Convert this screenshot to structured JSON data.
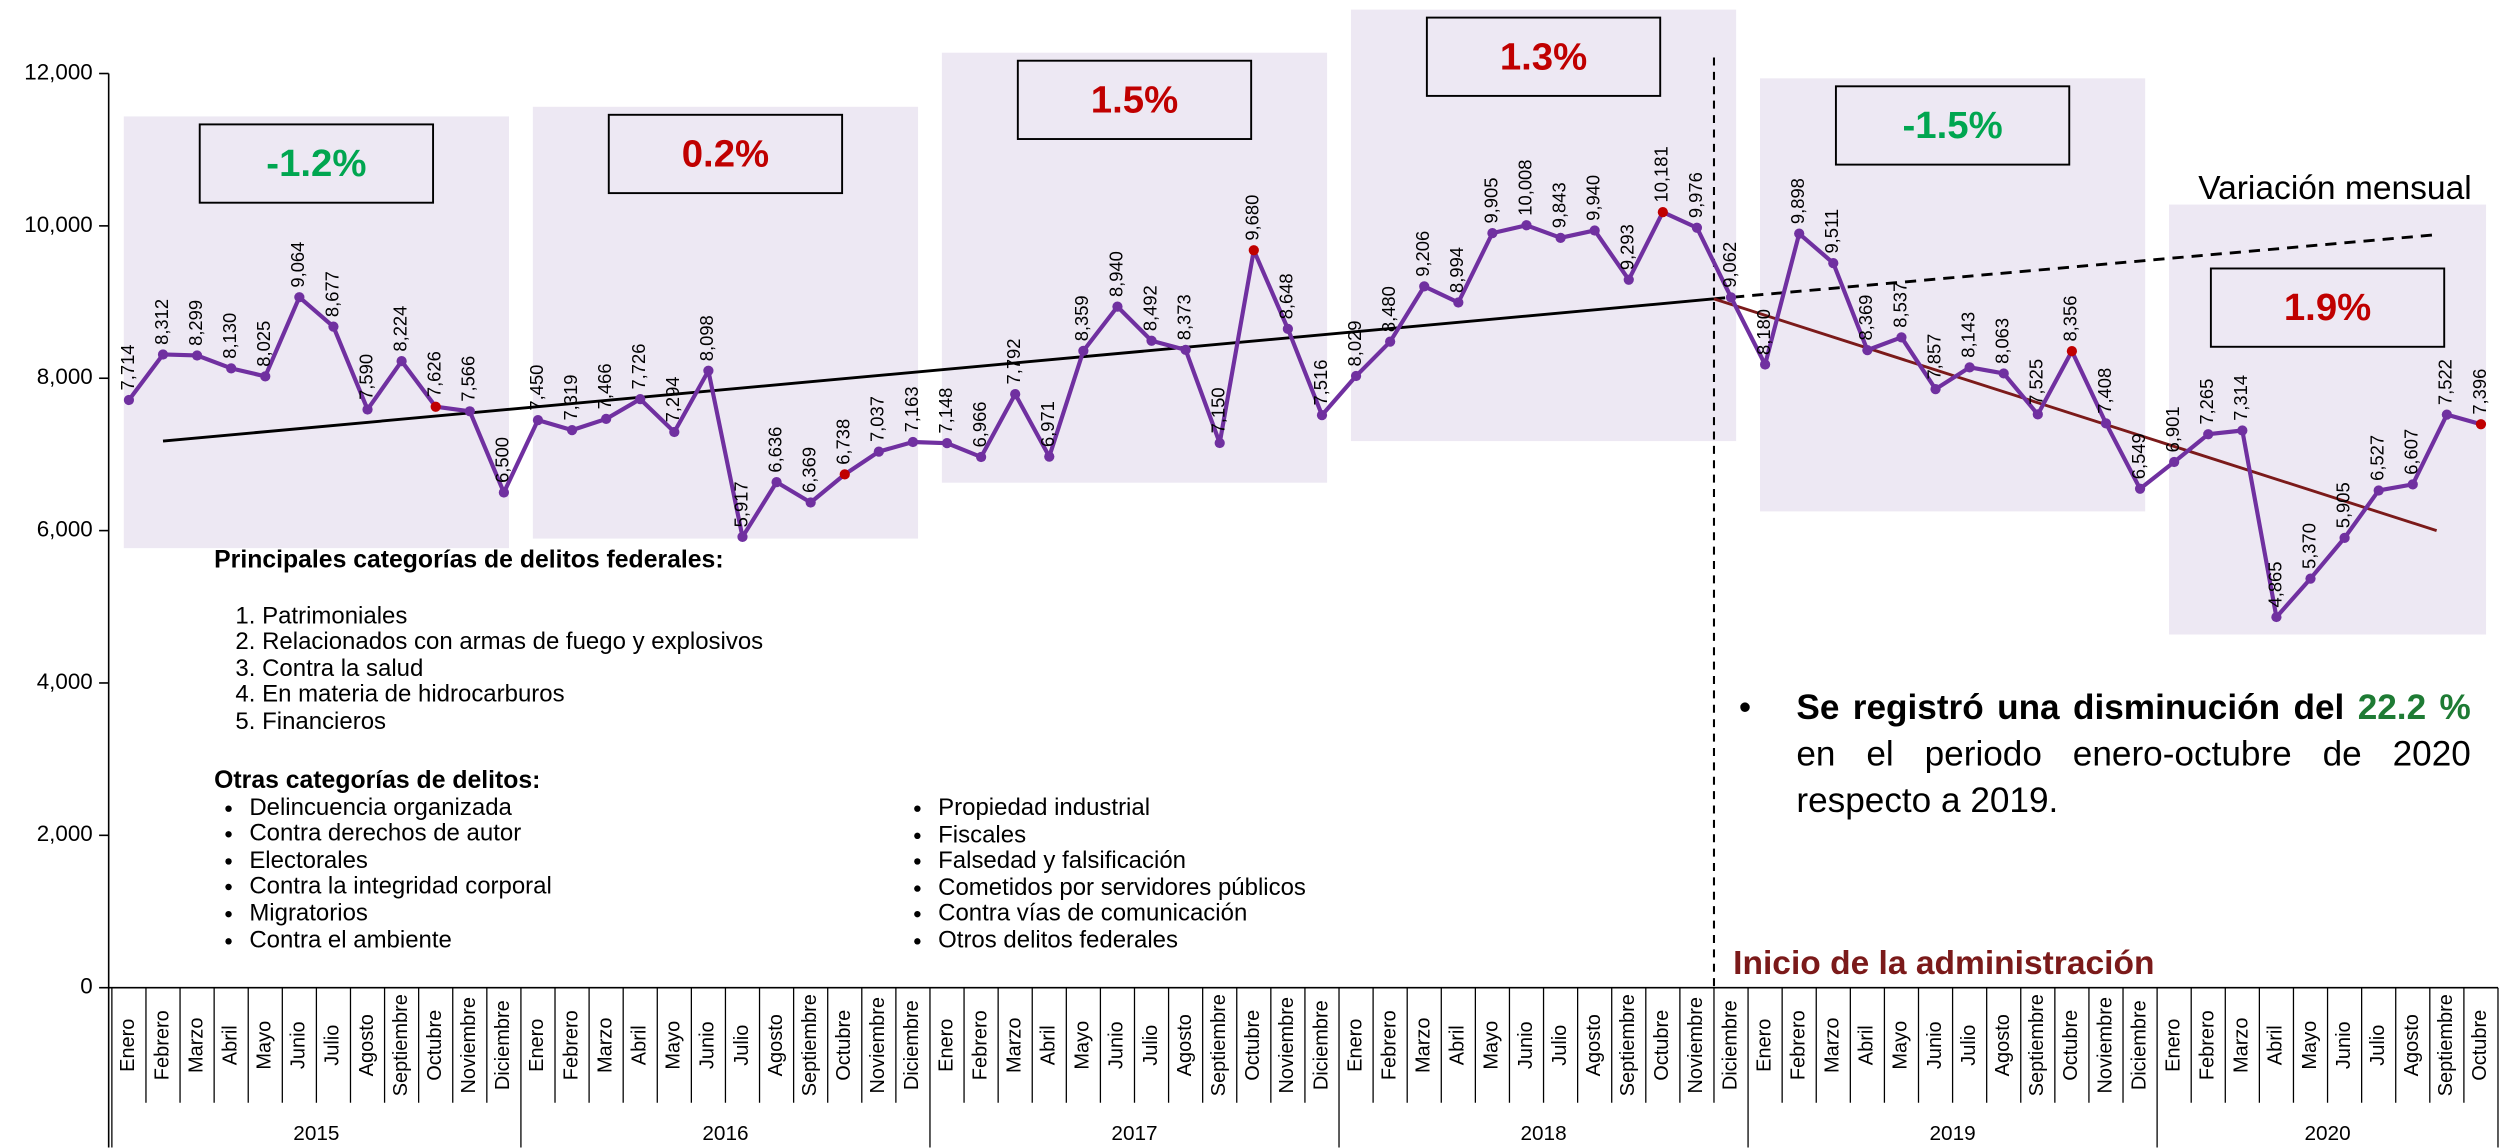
{
  "chart_data": {
    "type": "line",
    "annotation": "Variación mensual",
    "administration_label": "Inicio de la administración",
    "categories": [
      "Enero",
      "Febrero",
      "Marzo",
      "Abril",
      "Mayo",
      "Junio",
      "Julio",
      "Agosto",
      "Septiembre",
      "Octubre",
      "Noviembre",
      "Diciembre",
      "Enero",
      "Febrero",
      "Marzo",
      "Abril",
      "Mayo",
      "Junio",
      "Julio",
      "Agosto",
      "Septiembre",
      "Octubre",
      "Noviembre",
      "Diciembre",
      "Enero",
      "Febrero",
      "Marzo",
      "Abril",
      "Mayo",
      "Junio",
      "Julio",
      "Agosto",
      "Septiembre",
      "Octubre",
      "Noviembre",
      "Diciembre",
      "Enero",
      "Febrero",
      "Marzo",
      "Abril",
      "Mayo",
      "Junio",
      "Julio",
      "Agosto",
      "Septiembre",
      "Octubre",
      "Noviembre",
      "Diciembre",
      "Enero",
      "Febrero",
      "Marzo",
      "Abril",
      "Mayo",
      "Junio",
      "Julio",
      "Agosto",
      "Septiembre",
      "Octubre",
      "Noviembre",
      "Diciembre",
      "Enero",
      "Febrero",
      "Marzo",
      "Abril",
      "Mayo",
      "Junio",
      "Julio",
      "Agosto",
      "Septiembre",
      "Octubre"
    ],
    "years": [
      "2015",
      "2016",
      "2017",
      "2018",
      "2019",
      "2020"
    ],
    "values": [
      7714,
      8312,
      8299,
      8130,
      8025,
      9064,
      8677,
      7590,
      8224,
      7626,
      7566,
      6500,
      7450,
      7319,
      7466,
      7726,
      7294,
      8098,
      5917,
      6636,
      6369,
      6738,
      7037,
      7163,
      7148,
      6966,
      7792,
      6971,
      8359,
      8940,
      8492,
      8373,
      7150,
      9680,
      8648,
      7516,
      8029,
      8480,
      9206,
      8994,
      9905,
      10008,
      9843,
      9940,
      9293,
      10181,
      9976,
      9062,
      8180,
      9898,
      9511,
      8369,
      8537,
      7857,
      8143,
      8063,
      7525,
      8356,
      7408,
      6549,
      6901,
      7265,
      7314,
      4865,
      5370,
      5905,
      6527,
      6607,
      7522,
      7396
    ],
    "value_labels": [
      "7,714",
      "8,312",
      "8,299",
      "8,130",
      "8,025",
      "9,064",
      "8,677",
      "7,590",
      "8,224",
      "7,626",
      "7,566",
      "6,500",
      "7,450",
      "7,319",
      "7,466",
      "7,726",
      "7,294",
      "8,098",
      "5,917",
      "6,636",
      "6,369",
      "6,738",
      "7,037",
      "7,163",
      "7,148",
      "6,966",
      "7,792",
      "6,971",
      "8,359",
      "8,940",
      "8,492",
      "8,373",
      "7,150",
      "9,680",
      "8,648",
      "7,516",
      "8,029",
      "8,480",
      "9,206",
      "8,994",
      "9,905",
      "10,008",
      "9,843",
      "9,940",
      "9,293",
      "10,181",
      "9,976",
      "9,062",
      "8,180",
      "9,898",
      "9,511",
      "8,369",
      "8,537",
      "7,857",
      "8,143",
      "8,063",
      "7,525",
      "8,356",
      "7,408",
      "6,549",
      "6,901",
      "7,265",
      "7,314",
      "4,865",
      "5,370",
      "5,905",
      "6,527",
      "6,607",
      "7,522",
      "7,396"
    ],
    "color": "#7030a0",
    "marker_colors": [
      "#7030a0",
      "#7030a0",
      "#7030a0",
      "#7030a0",
      "#7030a0",
      "#7030a0",
      "#7030a0",
      "#7030a0",
      "#7030a0",
      "#c00000",
      "#7030a0",
      "#7030a0",
      "#7030a0",
      "#7030a0",
      "#7030a0",
      "#7030a0",
      "#7030a0",
      "#7030a0",
      "#7030a0",
      "#7030a0",
      "#7030a0",
      "#c00000",
      "#7030a0",
      "#7030a0",
      "#7030a0",
      "#7030a0",
      "#7030a0",
      "#7030a0",
      "#7030a0",
      "#7030a0",
      "#7030a0",
      "#7030a0",
      "#7030a0",
      "#c00000",
      "#7030a0",
      "#7030a0",
      "#7030a0",
      "#7030a0",
      "#7030a0",
      "#7030a0",
      "#7030a0",
      "#7030a0",
      "#7030a0",
      "#7030a0",
      "#7030a0",
      "#c00000",
      "#7030a0",
      "#7030a0",
      "#7030a0",
      "#7030a0",
      "#7030a0",
      "#7030a0",
      "#7030a0",
      "#7030a0",
      "#7030a0",
      "#7030a0",
      "#7030a0",
      "#c00000",
      "#7030a0",
      "#7030a0",
      "#7030a0",
      "#7030a0",
      "#7030a0",
      "#7030a0",
      "#7030a0",
      "#7030a0",
      "#7030a0",
      "#7030a0",
      "#7030a0",
      "#c00000"
    ],
    "ylim": [
      0,
      12000
    ],
    "yticks": [
      0,
      {
        "value": 2000,
        "label": "2,000"
      },
      {
        "value": 4000,
        "label": "4,000"
      },
      {
        "value": 6000,
        "label": "6,000"
      },
      {
        "value": 8000,
        "label": "8,000"
      },
      {
        "value": 10000,
        "label": "10,000"
      },
      {
        "value": 12000,
        "label": "12,000"
      }
    ],
    "trend_lines": [
      {
        "x": [
          1,
          46.5
        ],
        "values": [
          7175,
          9042
        ],
        "color": "#000000",
        "dashed": false
      },
      {
        "x": [
          46.5,
          67.6
        ],
        "values": [
          9042,
          9881
        ],
        "color": "#000000",
        "dashed": true
      },
      {
        "x": [
          46.5,
          67.7
        ],
        "values": [
          9042,
          6000
        ],
        "color": "#7b1a1a",
        "dashed": false
      }
    ],
    "panels": [
      {
        "ylim": [
          5770,
          11437
        ],
        "label": "-1.2%",
        "label_color": "#00a650"
      },
      {
        "ylim": [
          5895,
          11563
        ],
        "label": "0.2%",
        "label_color": "#c00000"
      },
      {
        "ylim": [
          6629,
          12273
        ],
        "label": "1.5%",
        "label_color": "#c00000"
      },
      {
        "ylim": [
          7175,
          12839
        ],
        "label": "1.3%",
        "label_color": "#c00000"
      },
      {
        "ylim": [
          6252,
          11937
        ],
        "label": "-1.5%",
        "label_color": "#00a650"
      },
      {
        "ylim": [
          4636,
          10280
        ],
        "label": "1.9%",
        "label_color": "#c00000"
      }
    ]
  },
  "notes": {
    "main": {
      "title": "Principales categorías de delitos federales:",
      "items": [
        "Patrimoniales",
        "Relacionados con armas de fuego y explosivos",
        "Contra la salud",
        "En materia de hidrocarburos",
        "Financieros"
      ]
    },
    "other": {
      "title": "Otras categorías de delitos:",
      "left": [
        "Delincuencia organizada",
        "Contra derechos de autor",
        "Electorales",
        "Contra la integridad corporal",
        "Migratorios",
        "Contra el ambiente"
      ],
      "right": [
        "Propiedad industrial",
        "Fiscales",
        "Falsedad y falsificación",
        "Cometidos por servidores públicos",
        "Contra vías de comunicación",
        "Otros delitos federales"
      ]
    },
    "summary": {
      "lead": "Se registró una disminución del",
      "highlight": "22.2 %",
      "rest": "en el periodo enero-octubre de 2020 respecto a 2019."
    }
  }
}
